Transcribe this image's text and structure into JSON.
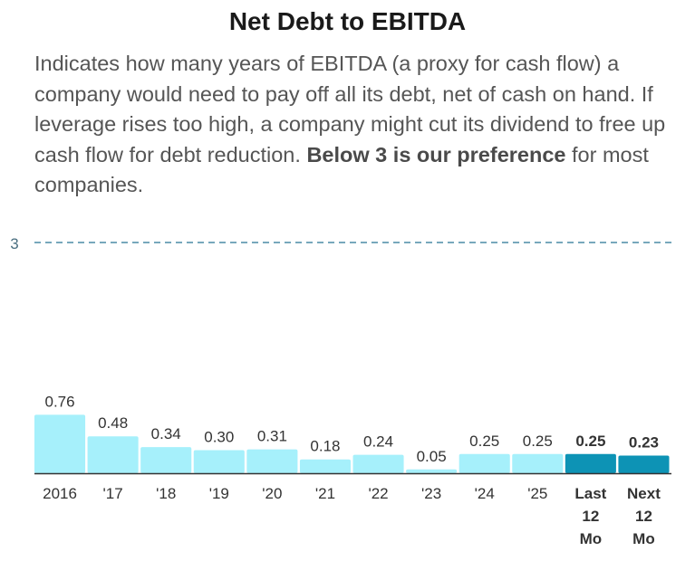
{
  "title": "Net Debt to EBITDA",
  "description": {
    "main": "Indicates how many years of EBITDA (a proxy for cash flow) a company would need to pay off all its debt, net of cash on hand. If leverage rises too high, a company might cut its dividend to free up cash flow for debt reduction. ",
    "bold": "Below 3 is our preference",
    "tail": " for most companies."
  },
  "colors": {
    "historical_bar": "#a6f0fb",
    "forecast_bar": "#0d93b5",
    "threshold_line": "#4a8ca6",
    "baseline": "#333333",
    "label_text": "#333333"
  },
  "chart_data": {
    "type": "bar",
    "title": "Net Debt to EBITDA",
    "categories": [
      "2016",
      "'17",
      "'18",
      "'19",
      "'20",
      "'21",
      "'22",
      "'23",
      "'24",
      "'25",
      "Last 12 Mo",
      "Next 12 Mo"
    ],
    "values": [
      0.76,
      0.48,
      0.34,
      0.3,
      0.31,
      0.18,
      0.24,
      0.05,
      0.25,
      0.25,
      0.25,
      0.23
    ],
    "value_labels": [
      "0.76",
      "0.48",
      "0.34",
      "0.30",
      "0.31",
      "0.18",
      "0.24",
      "0.05",
      "0.25",
      "0.25",
      "0.25",
      "0.23"
    ],
    "highlighted": [
      false,
      false,
      false,
      false,
      false,
      false,
      false,
      false,
      false,
      false,
      true,
      true
    ],
    "threshold": {
      "value": 3,
      "label": "3"
    },
    "xlabel": "",
    "ylabel": "",
    "ylim": [
      0,
      3
    ],
    "grid": false,
    "legend": "none"
  }
}
